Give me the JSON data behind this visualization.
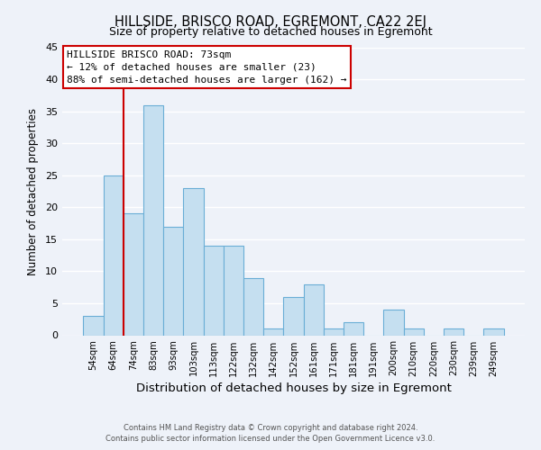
{
  "title": "HILLSIDE, BRISCO ROAD, EGREMONT, CA22 2EJ",
  "subtitle": "Size of property relative to detached houses in Egremont",
  "xlabel": "Distribution of detached houses by size in Egremont",
  "ylabel": "Number of detached properties",
  "footer_line1": "Contains HM Land Registry data © Crown copyright and database right 2024.",
  "footer_line2": "Contains public sector information licensed under the Open Government Licence v3.0.",
  "bar_labels": [
    "54sqm",
    "64sqm",
    "74sqm",
    "83sqm",
    "93sqm",
    "103sqm",
    "113sqm",
    "122sqm",
    "132sqm",
    "142sqm",
    "152sqm",
    "161sqm",
    "171sqm",
    "181sqm",
    "191sqm",
    "200sqm",
    "210sqm",
    "220sqm",
    "230sqm",
    "239sqm",
    "249sqm"
  ],
  "bar_values": [
    3,
    25,
    19,
    36,
    17,
    23,
    14,
    14,
    9,
    1,
    6,
    8,
    1,
    2,
    0,
    4,
    1,
    0,
    1,
    0,
    1
  ],
  "bar_color": "#c5dff0",
  "bar_edge_color": "#6aaed6",
  "vline_color": "#cc0000",
  "ylim": [
    0,
    45
  ],
  "yticks": [
    0,
    5,
    10,
    15,
    20,
    25,
    30,
    35,
    40,
    45
  ],
  "annotation_title": "HILLSIDE BRISCO ROAD: 73sqm",
  "annotation_line1": "← 12% of detached houses are smaller (23)",
  "annotation_line2": "88% of semi-detached houses are larger (162) →",
  "annotation_box_color": "#ffffff",
  "annotation_box_edge": "#cc0000",
  "background_color": "#eef2f9",
  "grid_color": "#ffffff",
  "title_fontsize": 10.5,
  "subtitle_fontsize": 9
}
